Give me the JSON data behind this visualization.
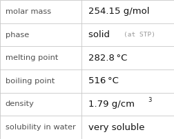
{
  "rows": [
    {
      "label": "molar mass",
      "value": "254.15 g/mol",
      "suffix": null,
      "superscript": null
    },
    {
      "label": "phase",
      "value": "solid",
      "suffix": "(at STP)",
      "superscript": null
    },
    {
      "label": "melting point",
      "value": "282.8 °C",
      "suffix": null,
      "superscript": null
    },
    {
      "label": "boiling point",
      "value": "516 °C",
      "suffix": null,
      "superscript": null
    },
    {
      "label": "density",
      "value": "1.79 g/cm",
      "suffix": null,
      "superscript": "3"
    },
    {
      "label": "solubility in water",
      "value": "very soluble",
      "suffix": null,
      "superscript": null
    }
  ],
  "col_split": 0.468,
  "background_color": "#ffffff",
  "border_color": "#c8c8c8",
  "label_color": "#505050",
  "value_color": "#111111",
  "suffix_color": "#999999",
  "label_fontsize": 8.2,
  "value_fontsize": 9.5,
  "suffix_fontsize": 6.8,
  "superscript_fontsize": 6.0,
  "label_font": "DejaVu Sans",
  "value_font": "DejaVu Sans"
}
